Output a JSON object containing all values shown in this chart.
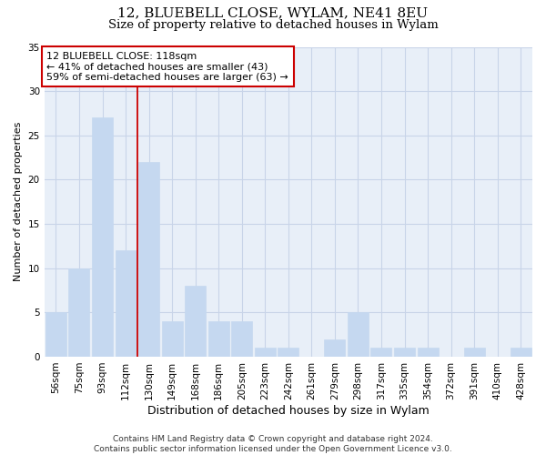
{
  "title1": "12, BLUEBELL CLOSE, WYLAM, NE41 8EU",
  "title2": "Size of property relative to detached houses in Wylam",
  "xlabel": "Distribution of detached houses by size in Wylam",
  "ylabel": "Number of detached properties",
  "categories": [
    "56sqm",
    "75sqm",
    "93sqm",
    "112sqm",
    "130sqm",
    "149sqm",
    "168sqm",
    "186sqm",
    "205sqm",
    "223sqm",
    "242sqm",
    "261sqm",
    "279sqm",
    "298sqm",
    "317sqm",
    "335sqm",
    "354sqm",
    "372sqm",
    "391sqm",
    "410sqm",
    "428sqm"
  ],
  "values": [
    5,
    10,
    27,
    12,
    22,
    4,
    8,
    4,
    4,
    1,
    1,
    0,
    2,
    5,
    1,
    1,
    1,
    0,
    1,
    0,
    1
  ],
  "bar_color": "#c5d8f0",
  "bar_edge_color": "#c5d8f0",
  "grid_color": "#c8d4e8",
  "background_color": "#e8eff8",
  "vline_x": 3.5,
  "vline_color": "#cc0000",
  "annotation_title": "12 BLUEBELL CLOSE: 118sqm",
  "annotation_line1": "← 41% of detached houses are smaller (43)",
  "annotation_line2": "59% of semi-detached houses are larger (63) →",
  "annotation_box_color": "#cc0000",
  "footer1": "Contains HM Land Registry data © Crown copyright and database right 2024.",
  "footer2": "Contains public sector information licensed under the Open Government Licence v3.0.",
  "ylim": [
    0,
    35
  ],
  "yticks": [
    0,
    5,
    10,
    15,
    20,
    25,
    30,
    35
  ],
  "title1_fontsize": 11,
  "title2_fontsize": 9.5,
  "xlabel_fontsize": 9,
  "ylabel_fontsize": 8,
  "tick_fontsize": 7.5,
  "footer_fontsize": 6.5,
  "ann_fontsize": 8
}
